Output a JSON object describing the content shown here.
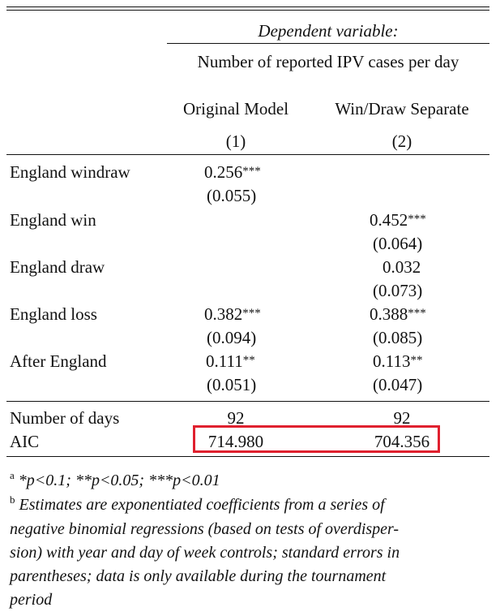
{
  "header": {
    "dependent_variable": "Dependent variable:",
    "dependent_name": "Number of reported IPV cases per day",
    "columns": [
      {
        "label": "Original Model",
        "number": "(1)"
      },
      {
        "label": "Win/Draw Separate",
        "number": "(2)"
      }
    ]
  },
  "rows": [
    {
      "label": "England windraw",
      "c1": "0.256",
      "c1_stars": "***",
      "c1_se": "(0.055)",
      "c2": "",
      "c2_stars": "",
      "c2_se": ""
    },
    {
      "label": "England win",
      "c1": "",
      "c1_stars": "",
      "c1_se": "",
      "c2": "0.452",
      "c2_stars": "***",
      "c2_se": "(0.064)"
    },
    {
      "label": "England draw",
      "c1": "",
      "c1_stars": "",
      "c1_se": "",
      "c2": "0.032",
      "c2_stars": "",
      "c2_se": "(0.073)"
    },
    {
      "label": "England loss",
      "c1": "0.382",
      "c1_stars": "***",
      "c1_se": "(0.094)",
      "c2": "0.388",
      "c2_stars": "***",
      "c2_se": "(0.085)"
    },
    {
      "label": "After England",
      "c1": "0.111",
      "c1_stars": "**",
      "c1_se": "(0.051)",
      "c2": "0.113",
      "c2_stars": "**",
      "c2_se": "(0.047)"
    }
  ],
  "stats": [
    {
      "label": "Number of days",
      "c1": "92",
      "c2": "92"
    },
    {
      "label": "AIC",
      "c1": "714.980",
      "c2": "704.356"
    }
  ],
  "notes": {
    "a_marker": "a",
    "a_text": "*p<0.1; **p<0.05; ***p<0.01",
    "b_marker": "b",
    "b_lines": [
      "Estimates are exponentiated coefficients from a series of",
      "negative binomial regressions (based on tests of overdisper-",
      "sion) with year and day of week controls; standard errors in",
      "parentheses; data is only available during the tournament",
      "period"
    ]
  },
  "highlight_color": "#e0202e"
}
